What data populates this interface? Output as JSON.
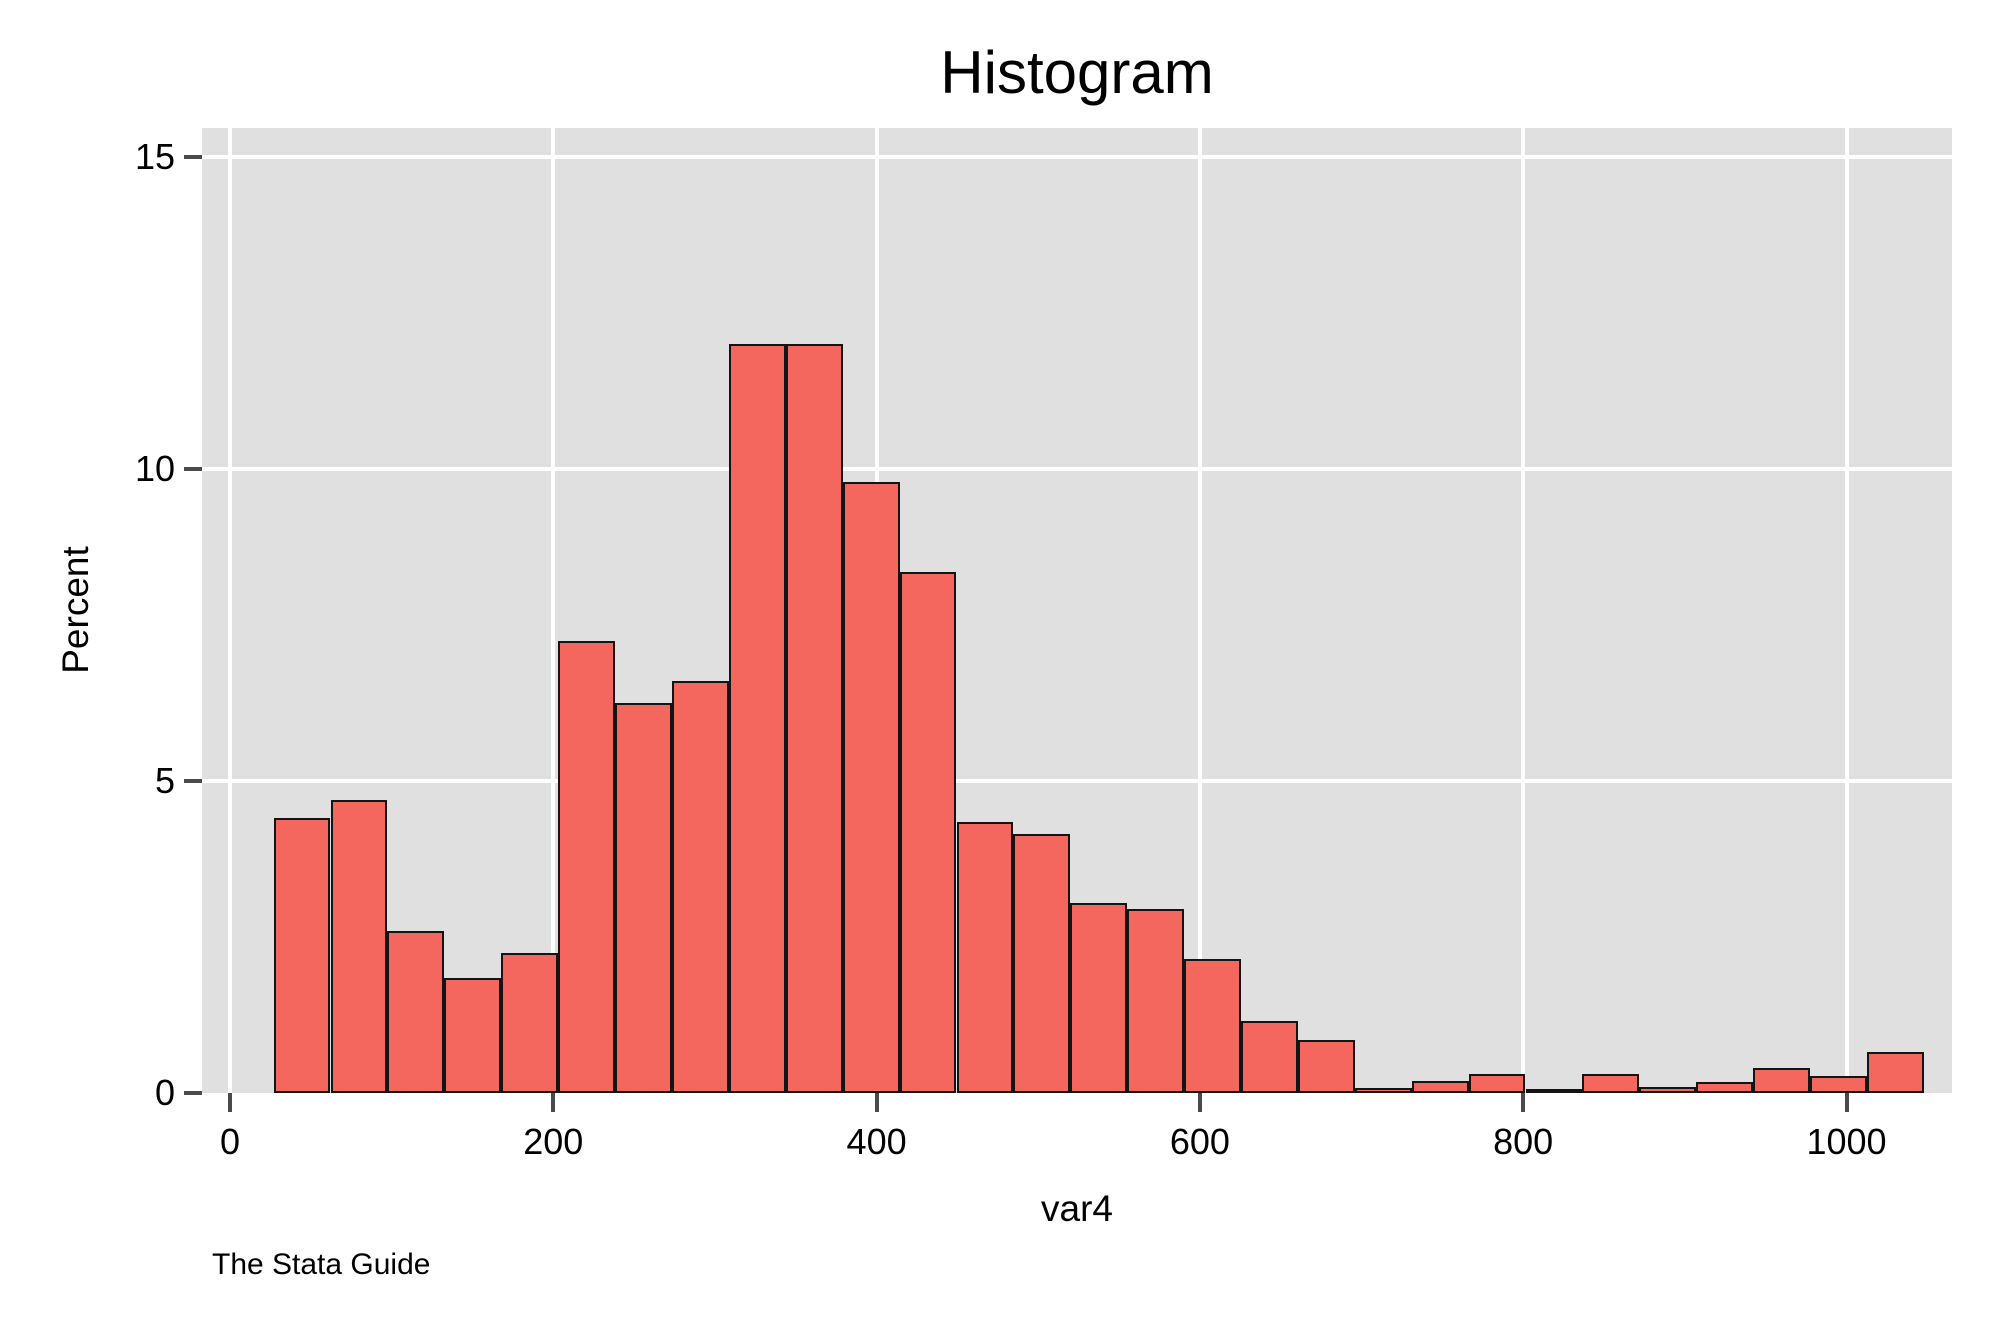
{
  "chart_data": {
    "type": "bar",
    "subtype": "histogram",
    "title": "Histogram",
    "xlabel": "var4",
    "ylabel": "Percent",
    "caption": "The Stata Guide",
    "x_ticks": [
      0,
      200,
      400,
      600,
      800,
      1000
    ],
    "y_ticks": [
      0,
      5,
      10,
      15
    ],
    "xlim": [
      -17.3,
      1065.4
    ],
    "ylim": [
      0,
      15.46
    ],
    "grid": true,
    "n_bins": 29,
    "bin_width": 35.2,
    "bin_edges": [
      27.0,
      62.2,
      97.4,
      132.6,
      167.8,
      203.0,
      238.2,
      273.4,
      308.6,
      343.8,
      379.0,
      414.2,
      449.4,
      484.6,
      519.8,
      555.0,
      590.2,
      625.4,
      660.6,
      695.8,
      731.0,
      766.2,
      801.4,
      836.6,
      871.8,
      907.0,
      942.2,
      977.4,
      1012.6,
      1047.8
    ],
    "values_percent": [
      4.4,
      4.7,
      2.6,
      1.85,
      2.25,
      7.25,
      6.25,
      6.6,
      12.0,
      12.0,
      9.8,
      8.35,
      4.35,
      4.15,
      3.05,
      2.95,
      2.15,
      1.15,
      0.85,
      0.08,
      0.2,
      0.3,
      0.06,
      0.3,
      0.1,
      0.18,
      0.4,
      0.27,
      0.65
    ],
    "colors": {
      "bar_fill": "#f4675e",
      "bar_border": "#141414",
      "plot_background": "#e0e0e0",
      "gridline": "#ffffff",
      "tick_mark": "#4a4a4a",
      "text": "#000000",
      "outer_background": "#ffffff"
    }
  }
}
